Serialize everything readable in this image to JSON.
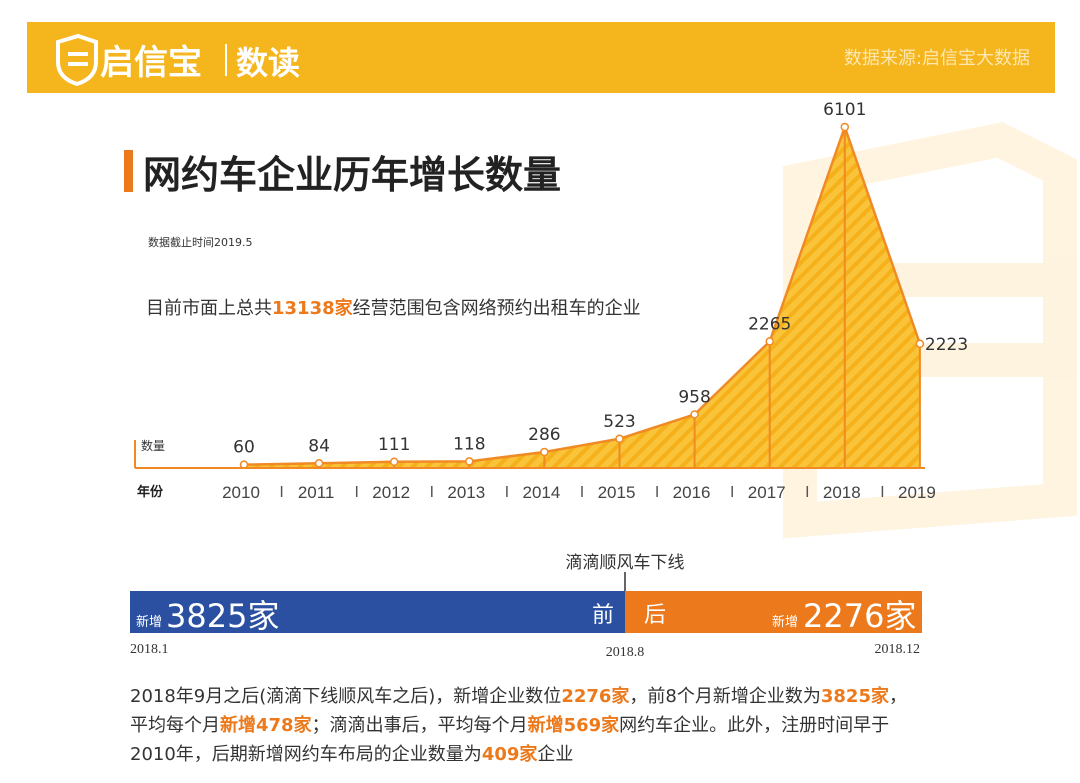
{
  "header": {
    "brand": "启信宝",
    "section": "数读",
    "source": "数据来源:启信宝大数据"
  },
  "note": "数据截止时间2019.5",
  "summary": [
    "目前市面上总共",
    "13138家",
    "经营范围包含网络预约出租车的企业"
  ],
  "chart_data": {
    "type": "area",
    "title": "网约车企业历年增长数量",
    "y_label": "数量",
    "x_label": "年份",
    "categories": [
      "2010",
      "2011",
      "2012",
      "2013",
      "2014",
      "2015",
      "2016",
      "2017",
      "2018",
      "2019"
    ],
    "values": [
      60,
      84,
      111,
      118,
      286,
      523,
      958,
      2265,
      6101,
      2223
    ],
    "ylim": [
      0,
      6500
    ],
    "color": "#f08a24",
    "fill": "#f7b924"
  },
  "timeline": {
    "event": "滴滴顺风车下线",
    "before": {
      "prefix": "新增",
      "amount": "3825家",
      "tag": "前",
      "color": "#2b50a1"
    },
    "after": {
      "prefix": "新增",
      "amount": "2276家",
      "tag": "后",
      "color": "#ec7a1c"
    },
    "dates": [
      "2018.1",
      "2018.8",
      "2018.12"
    ]
  },
  "paragraph": [
    [
      "2018年9月之后(滴滴下线顺风车之后)，新增企业数位",
      "2276家",
      "，前8个月新增企业数为",
      "3825家",
      "，"
    ],
    [
      "平均每个月",
      "新增478家",
      "；滴滴出事后，平均每个月",
      "新增569家",
      "网约车企业。此外，注册时间早于"
    ],
    [
      "2010年，后期新增网约车布局的企业数量为",
      "409家",
      "企业"
    ]
  ]
}
